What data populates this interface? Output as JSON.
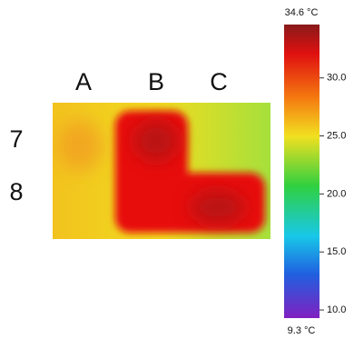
{
  "image": {
    "column_labels": [
      "A",
      "B",
      "C"
    ],
    "row_labels": [
      "7",
      "8"
    ]
  },
  "colorbar": {
    "lim": [
      9.3,
      34.6
    ],
    "min_label": "9.3 °C",
    "max_label": "34.6 °C",
    "ticks": [
      {
        "value": 10,
        "label": "10.0"
      },
      {
        "value": 15,
        "label": "15.0"
      },
      {
        "value": 20,
        "label": "20.0"
      },
      {
        "value": 25,
        "label": "25.0"
      },
      {
        "value": 30,
        "label": "30.0"
      }
    ]
  }
}
